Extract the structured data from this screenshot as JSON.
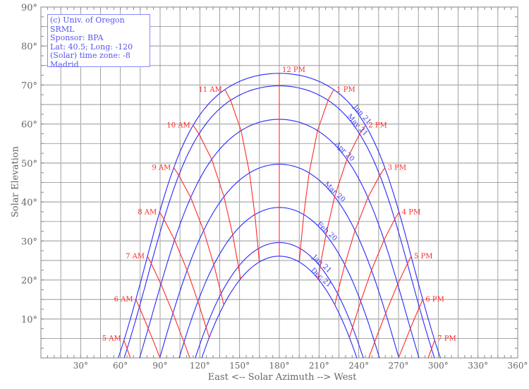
{
  "legend": {
    "lines": [
      "(c) Univ. of Oregon SRML",
      "Sponsor: BPA",
      "Lat: 40.5; Long: -120",
      "(Solar) time zone: -8",
      "Madrid"
    ]
  },
  "chart_data": {
    "type": "line",
    "title": "",
    "xlabel": "East <-- Solar Azimuth --> West",
    "ylabel": "Solar Elevation",
    "xlim": [
      0,
      360
    ],
    "ylim": [
      0,
      90
    ],
    "x_ticks": [
      "30°",
      "60°",
      "90°",
      "120°",
      "150°",
      "180°",
      "210°",
      "240°",
      "270°",
      "300°",
      "330°",
      "360°"
    ],
    "y_ticks": [
      "10°",
      "20°",
      "30°",
      "40°",
      "50°",
      "60°",
      "70°",
      "80°",
      "90°"
    ],
    "grid": true,
    "latitude": 40.5,
    "date_series": [
      {
        "name": "Jun 21",
        "noon_elevation": 73.0
      },
      {
        "name": "May 21",
        "noon_elevation": 69.8
      },
      {
        "name": "Apr 20",
        "noon_elevation": 61.2
      },
      {
        "name": "Mar 20",
        "noon_elevation": 49.7
      },
      {
        "name": "Feb 20",
        "noon_elevation": 38.6
      },
      {
        "name": "Jan 21",
        "noon_elevation": 29.6
      },
      {
        "name": "Dec 21",
        "noon_elevation": 26.1
      }
    ],
    "hour_lines": [
      {
        "hour": 5,
        "label": "5 AM"
      },
      {
        "hour": 6,
        "label": "6 AM"
      },
      {
        "hour": 7,
        "label": "7 AM"
      },
      {
        "hour": 8,
        "label": "8 AM"
      },
      {
        "hour": 9,
        "label": "9 AM"
      },
      {
        "hour": 10,
        "label": "10 AM"
      },
      {
        "hour": 11,
        "label": "11 AM"
      },
      {
        "hour": 12,
        "label": "12 PM"
      },
      {
        "hour": 13,
        "label": "1 PM"
      },
      {
        "hour": 14,
        "label": "2 PM"
      },
      {
        "hour": 15,
        "label": "3 PM"
      },
      {
        "hour": 16,
        "label": "4 PM"
      },
      {
        "hour": 17,
        "label": "5 PM"
      },
      {
        "hour": 18,
        "label": "6 PM"
      },
      {
        "hour": 19,
        "label": "7 PM"
      }
    ],
    "colors": {
      "date_curves": "#2828ff",
      "hour_lines": "#ff2a2a",
      "grid": "#8a8a8a",
      "text": "#666666"
    }
  }
}
